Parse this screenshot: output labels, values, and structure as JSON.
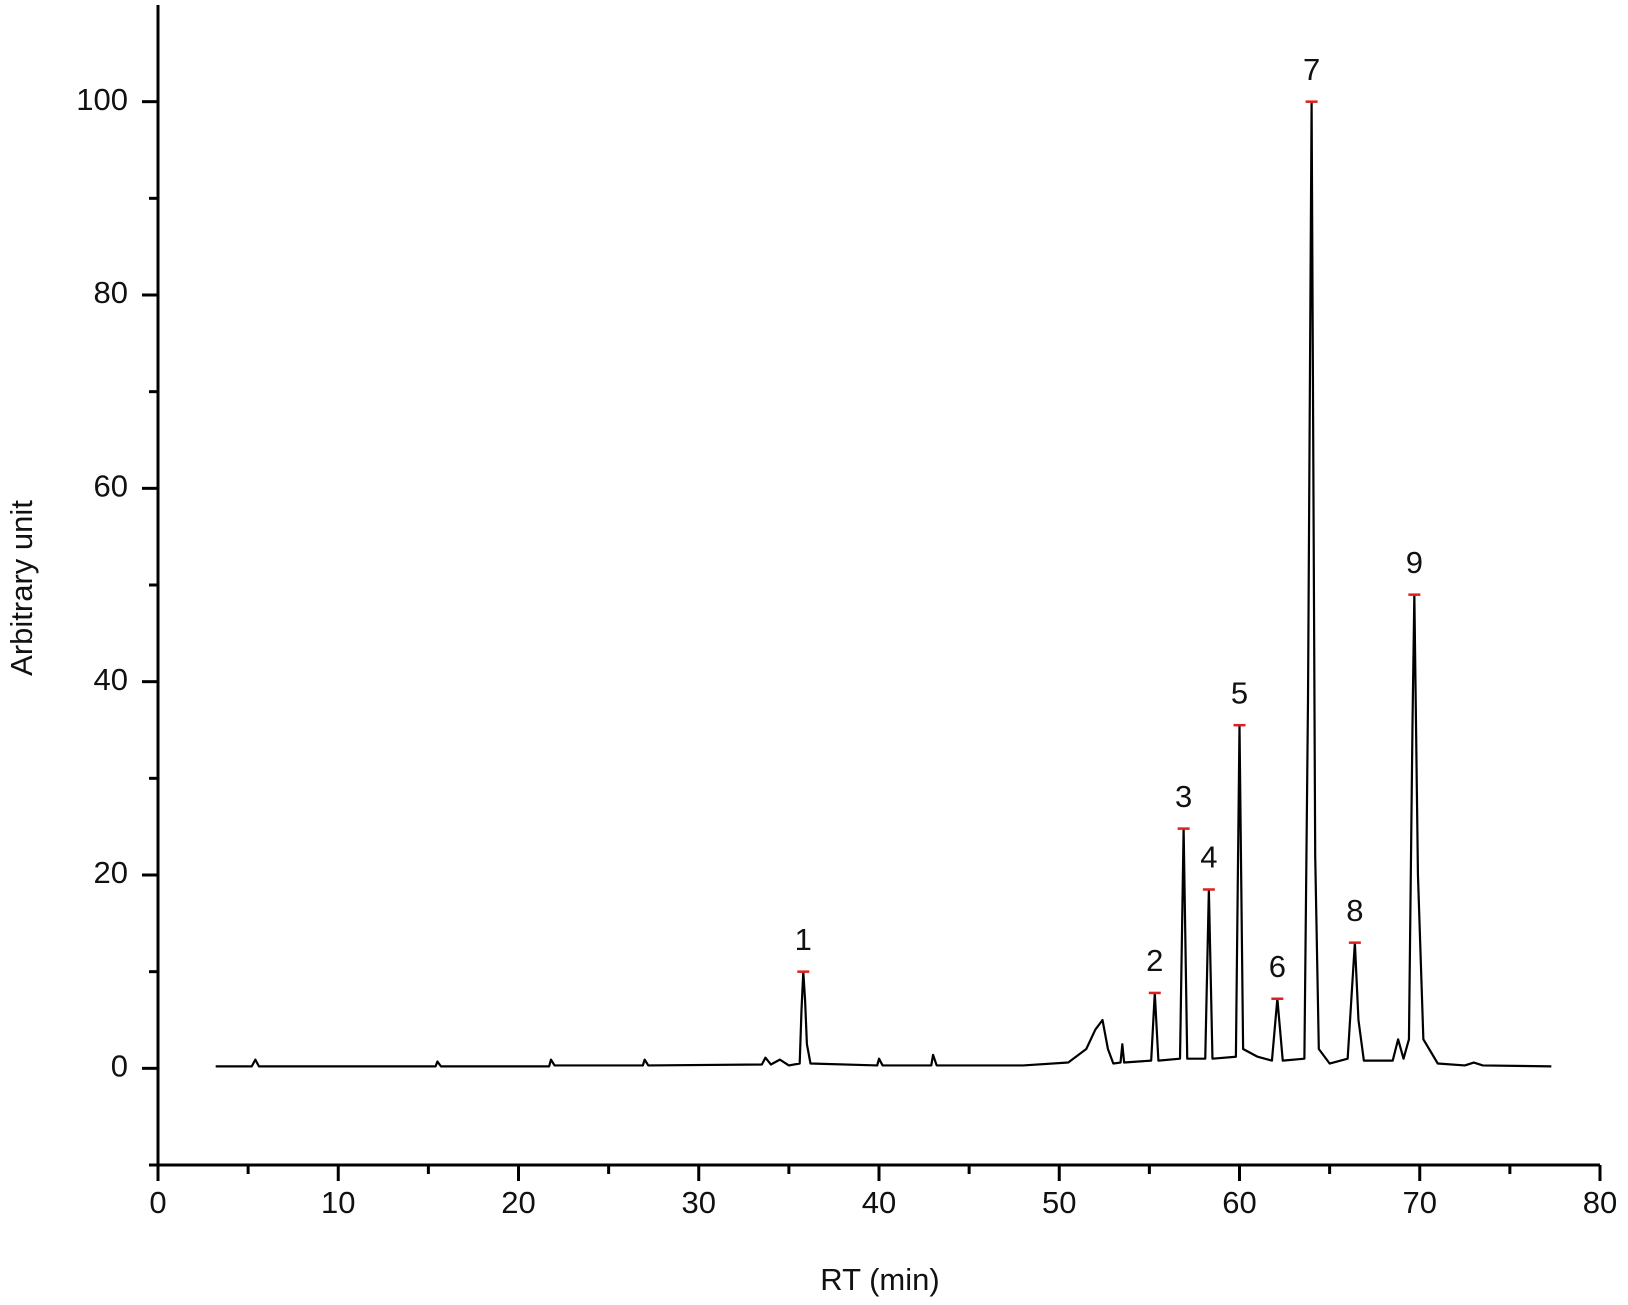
{
  "chart_data": {
    "type": "line",
    "xlabel": "RT (min)",
    "ylabel": "Arbitrary unit",
    "xlim": [
      0,
      80
    ],
    "ylim": [
      -10,
      110
    ],
    "xticks": [
      0,
      10,
      20,
      30,
      40,
      50,
      60,
      70,
      80
    ],
    "xminorticks": [
      5,
      15,
      25,
      35,
      45,
      55,
      65,
      75
    ],
    "yticks": [
      0,
      20,
      40,
      60,
      80,
      100
    ],
    "yminorticks": [
      -10,
      10,
      30,
      50,
      70,
      90
    ],
    "grid": false,
    "series": [
      {
        "color": "#000000",
        "x": [
          3.2,
          5.2,
          5.4,
          5.6,
          10.5,
          15.4,
          15.5,
          15.7,
          21.7,
          21.8,
          22,
          26.9,
          27,
          27.2,
          33.5,
          33.7,
          34,
          34.5,
          35,
          35.6,
          35.7,
          35.8,
          35.9,
          36,
          36.2,
          39.9,
          40,
          40.2,
          42.9,
          43,
          43.2,
          48,
          50.5,
          51.5,
          52,
          52.4,
          52.7,
          53,
          53.4,
          53.5,
          53.6,
          55.1,
          55.3,
          55.5,
          56.7,
          56.9,
          57.1,
          58.1,
          58.3,
          58.5,
          59.8,
          60,
          60.2,
          61,
          61.8,
          62.1,
          62.4,
          63.6,
          63.8,
          64,
          64.2,
          64.4,
          65,
          66,
          66.4,
          66.6,
          66.9,
          68.5,
          68.8,
          69.1,
          69.4,
          69.6,
          69.7,
          69.9,
          70.2,
          71,
          72.5,
          73,
          73.5,
          77.3
        ],
        "values": [
          0.2,
          0.2,
          0.9,
          0.2,
          0.2,
          0.2,
          0.7,
          0.2,
          0.2,
          0.9,
          0.3,
          0.3,
          0.9,
          0.3,
          0.4,
          1.1,
          0.4,
          0.9,
          0.3,
          0.5,
          6,
          10,
          7,
          2.5,
          0.5,
          0.3,
          1,
          0.3,
          0.3,
          1.4,
          0.3,
          0.3,
          0.6,
          2,
          4,
          5,
          2,
          0.5,
          0.6,
          2.5,
          0.6,
          0.8,
          7.8,
          0.8,
          1,
          24.8,
          1,
          1,
          18.5,
          1,
          1.2,
          35.5,
          2,
          1.2,
          0.8,
          7.2,
          0.8,
          1,
          38,
          100,
          22,
          2,
          0.5,
          1,
          13,
          5,
          0.8,
          0.8,
          3,
          1,
          3,
          36,
          49,
          20,
          3,
          0.5,
          0.3,
          0.6,
          0.3,
          0.2
        ]
      }
    ],
    "annotations": [
      {
        "text": "1",
        "x": 35.8,
        "y": 10
      },
      {
        "text": "2",
        "x": 55.3,
        "y": 7.8
      },
      {
        "text": "3",
        "x": 56.9,
        "y": 24.8
      },
      {
        "text": "4",
        "x": 58.3,
        "y": 18.5
      },
      {
        "text": "5",
        "x": 60,
        "y": 35.5
      },
      {
        "text": "6",
        "x": 62.1,
        "y": 7.2
      },
      {
        "text": "7",
        "x": 64,
        "y": 100
      },
      {
        "text": "8",
        "x": 66.4,
        "y": 13
      },
      {
        "text": "9",
        "x": 69.7,
        "y": 49
      }
    ],
    "marker_color": "#e02020"
  }
}
